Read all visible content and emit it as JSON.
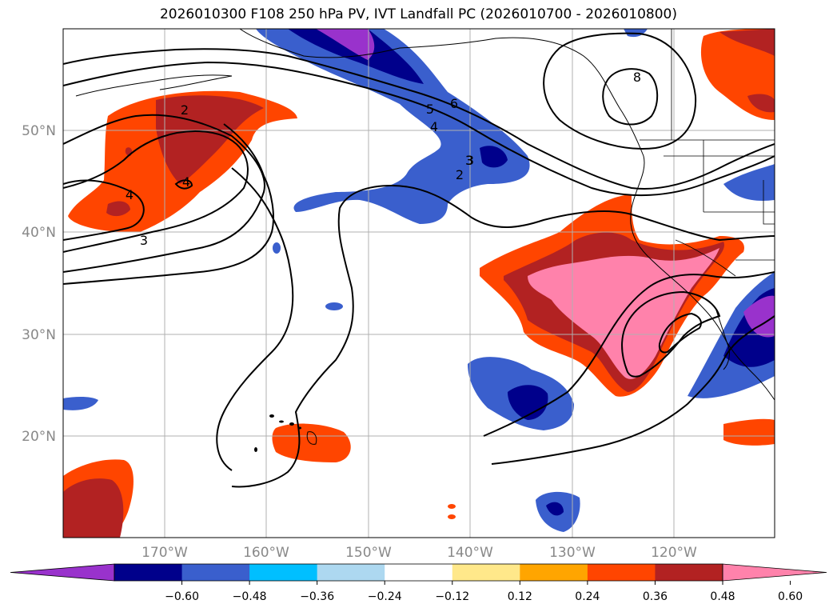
{
  "title": "2026010300 F108 250 hPa PV, IVT Landfall PC (2026010700 - 2026010800)",
  "lat_labels": [
    "50°N",
    "40°N",
    "30°N",
    "20°N"
  ],
  "lon_labels": [
    "170°W",
    "160°W",
    "150°W",
    "140°W",
    "130°W",
    "120°W"
  ],
  "contour_labels": [
    "2",
    "4",
    "4",
    "3",
    "3",
    "6",
    "5",
    "4",
    "3",
    "2",
    "8"
  ],
  "colorbar": {
    "ticks": [
      "−0.60",
      "−0.48",
      "−0.36",
      "−0.24",
      "−0.12",
      "0.12",
      "0.24",
      "0.36",
      "0.48",
      "0.60"
    ],
    "colors": [
      "#9932cc",
      "#00008b",
      "#3a5fcd",
      "#00bfff",
      "#add8f0",
      "#ffffff",
      "#ffe88a",
      "#ffa500",
      "#ff4500",
      "#b22222",
      "#ff82ab"
    ]
  }
}
